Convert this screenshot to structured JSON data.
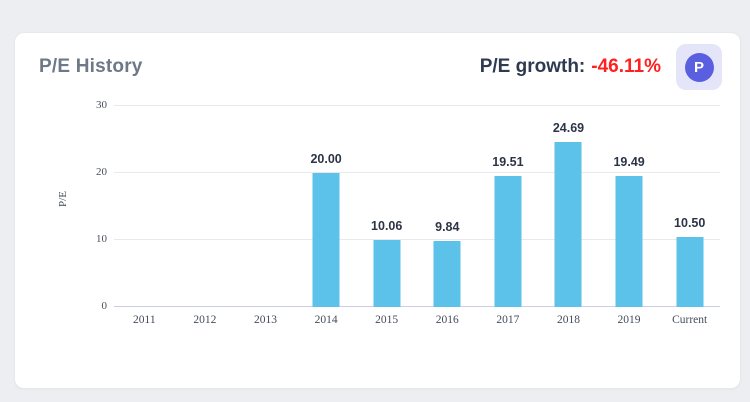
{
  "header": {
    "title": "P/E History",
    "growth_label": "P/E growth:",
    "growth_value": "-46.11%",
    "badge_letter": "P"
  },
  "colors": {
    "page_background": "#edeef1",
    "card_background": "#ffffff",
    "bar": "#5cc2e9",
    "badge_background": "#e4e5f8",
    "badge_circle": "#5a5fe0",
    "growth_value": "#ff2121",
    "title_text": "#6e7887",
    "growth_label_text": "#2e3a50",
    "baseline": "#c9cde8",
    "gridline": "#e9e9e9"
  },
  "chart_data": {
    "type": "bar",
    "title": "P/E History",
    "categories": [
      "2011",
      "2012",
      "2013",
      "2014",
      "2015",
      "2016",
      "2017",
      "2018",
      "2019",
      "Current"
    ],
    "values": [
      null,
      null,
      null,
      20.0,
      10.06,
      9.84,
      19.51,
      24.69,
      19.49,
      10.5
    ],
    "value_labels": [
      "",
      "",
      "",
      "20.00",
      "10.06",
      "9.84",
      "19.51",
      "24.69",
      "19.49",
      "10.50"
    ],
    "xlabel": "",
    "ylabel": "P/E",
    "ylim": [
      0,
      30
    ],
    "yticks": [
      0,
      10,
      20,
      30
    ],
    "grid": true,
    "legend": "none"
  }
}
